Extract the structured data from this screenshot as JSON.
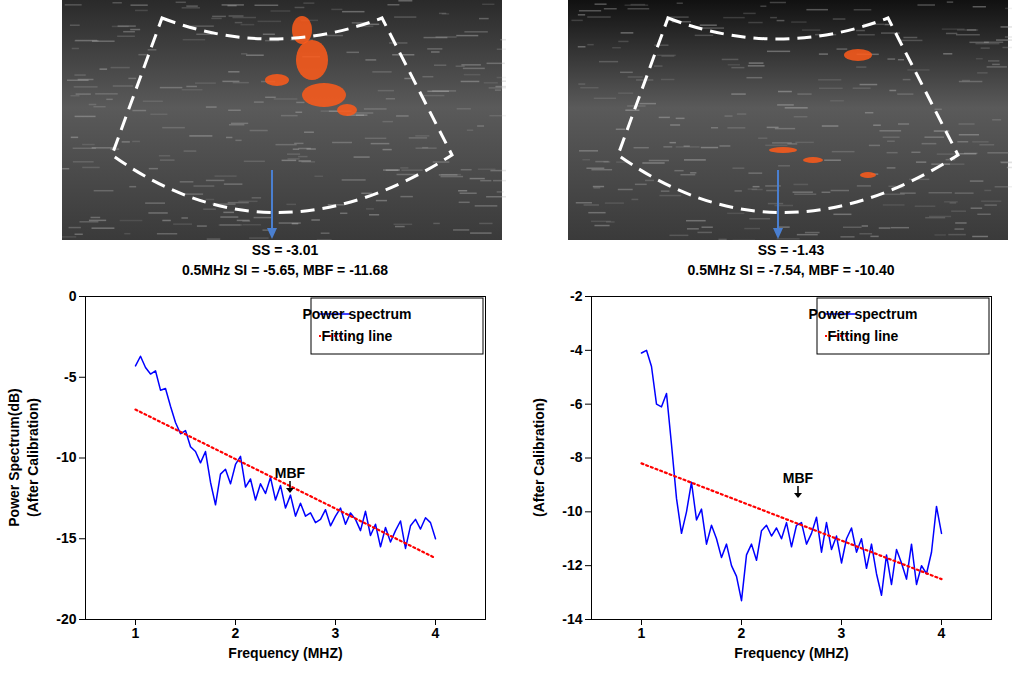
{
  "chart_data": [
    {
      "type": "line",
      "title": "SS = -3.01",
      "subtitle": "0.5MHz SI = -5.65, MBF = -11.68",
      "xlabel": "Frequency (MHZ)",
      "ylabel": [
        "Power Spectrum(dB)",
        "(After Calibration)"
      ],
      "xlim": [
        0.5,
        4.5
      ],
      "xticks": [
        1,
        2,
        3,
        4
      ],
      "ylim": [
        -20,
        0
      ],
      "yticks": [
        -20,
        -15,
        -10,
        -5,
        0
      ],
      "legend": "upper right",
      "x": [
        1.0,
        1.05,
        1.1,
        1.15,
        1.2,
        1.25,
        1.3,
        1.35,
        1.4,
        1.45,
        1.5,
        1.55,
        1.6,
        1.65,
        1.7,
        1.75,
        1.8,
        1.85,
        1.9,
        1.95,
        2.0,
        2.05,
        2.1,
        2.15,
        2.2,
        2.25,
        2.3,
        2.35,
        2.4,
        2.45,
        2.5,
        2.55,
        2.6,
        2.65,
        2.7,
        2.75,
        2.8,
        2.85,
        2.9,
        2.95,
        3.0,
        3.05,
        3.1,
        3.15,
        3.2,
        3.25,
        3.3,
        3.35,
        3.4,
        3.45,
        3.5,
        3.55,
        3.6,
        3.65,
        3.7,
        3.75,
        3.8,
        3.85,
        3.9,
        3.95,
        4.0
      ],
      "series": [
        {
          "name": "Power spectrum",
          "color": "#0000ff",
          "line_style": "solid",
          "values": [
            -4.3,
            -3.7,
            -4.4,
            -4.8,
            -4.6,
            -5.8,
            -5.7,
            -6.8,
            -7.8,
            -8.5,
            -8.3,
            -9.3,
            -9.6,
            -10.3,
            -9.6,
            -11.5,
            -12.9,
            -11.0,
            -10.7,
            -11.6,
            -10.4,
            -9.9,
            -11.8,
            -11.3,
            -12.6,
            -11.6,
            -12.2,
            -11.2,
            -12.6,
            -11.7,
            -13.1,
            -12.3,
            -13.6,
            -12.8,
            -13.6,
            -13.4,
            -14.0,
            -13.8,
            -13.2,
            -14.2,
            -13.6,
            -13.1,
            -14.1,
            -13.4,
            -13.8,
            -14.5,
            -13.3,
            -14.8,
            -14.1,
            -15.5,
            -14.3,
            -15.2,
            -14.5,
            -13.9,
            -15.6,
            -14.2,
            -13.8,
            -14.4,
            -13.7,
            -14.0,
            -15.0
          ]
        },
        {
          "name": "Fitting line",
          "color": "#ff0000",
          "line_style": "dotted",
          "x": [
            1.0,
            4.0
          ],
          "values": [
            -7.0,
            -16.2
          ]
        }
      ],
      "annotations": [
        {
          "text": "MBF",
          "x": 2.55,
          "y": -12.2
        }
      ]
    },
    {
      "type": "line",
      "title": "SS = -1.43",
      "subtitle": "0.5MHz SI = -7.54, MBF = -10.40",
      "xlabel": "Frequency (MHZ)",
      "ylabel": [
        "(After Calibration)"
      ],
      "xlim": [
        0.5,
        4.5
      ],
      "xticks": [
        1,
        2,
        3,
        4
      ],
      "ylim": [
        -14,
        -2
      ],
      "yticks": [
        -14,
        -12,
        -10,
        -8,
        -6,
        -4,
        -2
      ],
      "legend": "upper right",
      "x": [
        1.0,
        1.05,
        1.1,
        1.15,
        1.2,
        1.25,
        1.3,
        1.35,
        1.4,
        1.45,
        1.5,
        1.55,
        1.6,
        1.65,
        1.7,
        1.75,
        1.8,
        1.85,
        1.9,
        1.95,
        2.0,
        2.05,
        2.1,
        2.15,
        2.2,
        2.25,
        2.3,
        2.35,
        2.4,
        2.45,
        2.5,
        2.55,
        2.6,
        2.65,
        2.7,
        2.75,
        2.8,
        2.85,
        2.9,
        2.95,
        3.0,
        3.05,
        3.1,
        3.15,
        3.2,
        3.25,
        3.3,
        3.35,
        3.4,
        3.45,
        3.5,
        3.55,
        3.6,
        3.65,
        3.7,
        3.75,
        3.8,
        3.85,
        3.9,
        3.95,
        4.0
      ],
      "series": [
        {
          "name": "Power spectrum",
          "color": "#0000ff",
          "line_style": "solid",
          "values": [
            -4.1,
            -4.0,
            -4.6,
            -6.0,
            -6.1,
            -5.6,
            -7.5,
            -9.5,
            -10.8,
            -10.0,
            -8.9,
            -10.3,
            -9.9,
            -11.2,
            -10.5,
            -11.0,
            -11.7,
            -11.2,
            -12.0,
            -12.4,
            -13.3,
            -11.6,
            -11.2,
            -11.8,
            -10.7,
            -10.5,
            -10.9,
            -10.6,
            -11.0,
            -10.4,
            -11.3,
            -10.5,
            -10.4,
            -11.2,
            -10.8,
            -10.2,
            -11.5,
            -10.4,
            -11.4,
            -10.9,
            -11.9,
            -11.0,
            -10.6,
            -11.5,
            -11.0,
            -12.1,
            -11.2,
            -12.3,
            -13.1,
            -11.6,
            -12.7,
            -11.4,
            -11.9,
            -12.5,
            -11.2,
            -12.7,
            -12.0,
            -12.3,
            -11.5,
            -9.8,
            -10.8
          ]
        },
        {
          "name": "Fitting line",
          "color": "#ff0000",
          "line_style": "dotted",
          "x": [
            1.0,
            4.0
          ],
          "values": [
            -8.2,
            -12.5
          ]
        }
      ],
      "annotations": [
        {
          "text": "MBF",
          "x": 2.57,
          "y": -9.5
        }
      ]
    }
  ]
}
